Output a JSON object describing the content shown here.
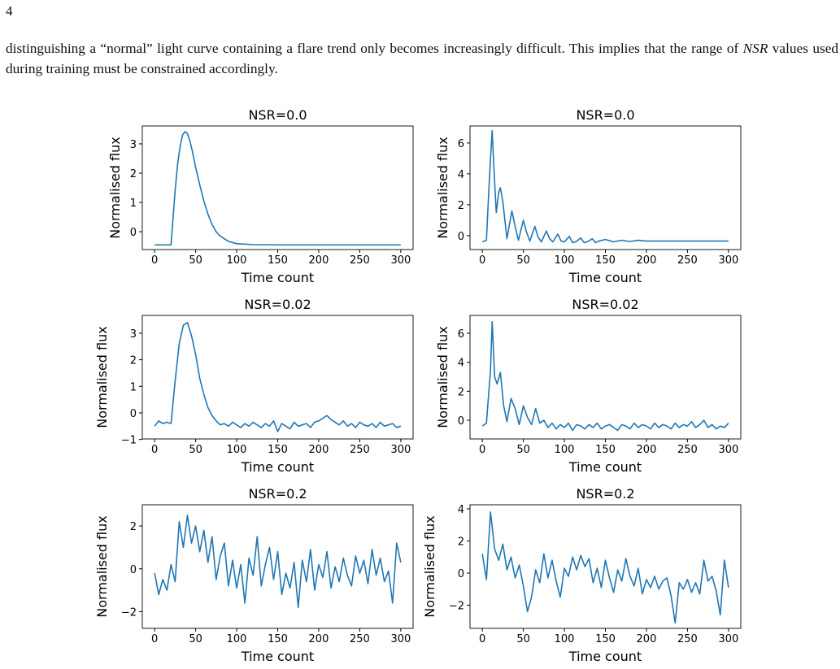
{
  "page_number": "4",
  "paragraph": [
    "distinguishing a “normal” light curve containing a flare trend only becomes increasingly difficult. This implies that the range of ",
    "NSR",
    " values used during training must be constrained accordingly."
  ],
  "chart_data": [
    {
      "type": "line",
      "title": "NSR=0.0",
      "xlabel": "Time count",
      "ylabel": "Normalised flux",
      "color": "#1f77b4",
      "x": [
        0,
        10,
        20,
        22,
        25,
        28,
        31,
        34,
        37,
        40,
        43,
        46,
        50,
        55,
        60,
        65,
        70,
        75,
        80,
        90,
        100,
        120,
        150,
        200,
        250,
        300
      ],
      "values": [
        -0.45,
        -0.45,
        -0.45,
        0.3,
        1.4,
        2.3,
        2.9,
        3.3,
        3.42,
        3.35,
        3.1,
        2.75,
        2.2,
        1.6,
        1.05,
        0.6,
        0.25,
        0.0,
        -0.15,
        -0.33,
        -0.41,
        -0.44,
        -0.45,
        -0.45,
        -0.45,
        -0.45
      ],
      "xlim": [
        -15,
        315
      ],
      "xticks": [
        0,
        50,
        100,
        150,
        200,
        250,
        300
      ],
      "ylim": [
        -0.61,
        3.61
      ],
      "yticks": [
        0,
        1,
        2,
        3
      ]
    },
    {
      "type": "line",
      "title": "NSR=0.0",
      "xlabel": "Time count",
      "ylabel": "Normalised flux",
      "color": "#1f77b4",
      "x": [
        0,
        5,
        8,
        10,
        12,
        14,
        17,
        20,
        22,
        25,
        30,
        36,
        40,
        44,
        50,
        54,
        58,
        64,
        68,
        72,
        78,
        82,
        86,
        92,
        96,
        100,
        106,
        110,
        114,
        120,
        124,
        128,
        134,
        138,
        142,
        150,
        160,
        170,
        180,
        190,
        200,
        250,
        300
      ],
      "values": [
        -0.4,
        -0.3,
        3.0,
        5.0,
        6.8,
        4.5,
        1.5,
        2.8,
        3.1,
        2.2,
        -0.2,
        1.6,
        0.6,
        -0.3,
        1.0,
        0.2,
        -0.35,
        0.6,
        -0.1,
        -0.4,
        0.3,
        -0.2,
        -0.4,
        0.1,
        -0.35,
        -0.4,
        -0.05,
        -0.45,
        -0.4,
        -0.15,
        -0.45,
        -0.4,
        -0.2,
        -0.45,
        -0.35,
        -0.25,
        -0.4,
        -0.3,
        -0.38,
        -0.3,
        -0.35,
        -0.35,
        -0.35
      ],
      "xlim": [
        -15,
        315
      ],
      "xticks": [
        0,
        50,
        100,
        150,
        200,
        250,
        300
      ],
      "ylim": [
        -0.9,
        7.1
      ],
      "yticks": [
        0,
        2,
        4,
        6
      ]
    },
    {
      "type": "line",
      "title": "NSR=0.02",
      "xlabel": "Time count",
      "ylabel": "Normalised flux",
      "color": "#1f77b4",
      "x": [
        0,
        5,
        10,
        15,
        20,
        25,
        30,
        35,
        40,
        45,
        50,
        55,
        60,
        65,
        70,
        75,
        80,
        85,
        90,
        95,
        100,
        105,
        110,
        115,
        120,
        125,
        130,
        135,
        140,
        145,
        150,
        155,
        160,
        165,
        170,
        175,
        180,
        185,
        190,
        195,
        200,
        205,
        210,
        215,
        220,
        225,
        230,
        235,
        240,
        245,
        250,
        255,
        260,
        265,
        270,
        275,
        280,
        285,
        290,
        295,
        300
      ],
      "values": [
        -0.5,
        -0.3,
        -0.4,
        -0.35,
        -0.4,
        1.2,
        2.6,
        3.3,
        3.4,
        2.9,
        2.2,
        1.3,
        0.7,
        0.2,
        -0.1,
        -0.3,
        -0.45,
        -0.4,
        -0.5,
        -0.35,
        -0.45,
        -0.55,
        -0.4,
        -0.5,
        -0.35,
        -0.45,
        -0.55,
        -0.4,
        -0.5,
        -0.3,
        -0.7,
        -0.4,
        -0.5,
        -0.6,
        -0.35,
        -0.5,
        -0.45,
        -0.4,
        -0.55,
        -0.35,
        -0.3,
        -0.2,
        -0.1,
        -0.25,
        -0.35,
        -0.45,
        -0.3,
        -0.5,
        -0.4,
        -0.55,
        -0.35,
        -0.45,
        -0.5,
        -0.4,
        -0.55,
        -0.35,
        -0.5,
        -0.45,
        -0.4,
        -0.55,
        -0.5
      ],
      "xlim": [
        -15,
        315
      ],
      "xticks": [
        0,
        50,
        100,
        150,
        200,
        250,
        300
      ],
      "ylim": [
        -0.98,
        3.67
      ],
      "yticks": [
        {
          "value": -1,
          "label": "−1"
        },
        0,
        1,
        2,
        3
      ]
    },
    {
      "type": "line",
      "title": "NSR=0.02",
      "xlabel": "Time count",
      "ylabel": "Normalised flux",
      "color": "#1f77b4",
      "x": [
        0,
        5,
        10,
        12,
        15,
        18,
        22,
        26,
        30,
        35,
        40,
        45,
        50,
        55,
        60,
        65,
        70,
        75,
        80,
        85,
        90,
        95,
        100,
        105,
        110,
        115,
        120,
        125,
        130,
        135,
        140,
        145,
        150,
        155,
        160,
        165,
        170,
        175,
        180,
        185,
        190,
        195,
        200,
        205,
        210,
        215,
        220,
        225,
        230,
        235,
        240,
        245,
        250,
        255,
        260,
        265,
        270,
        275,
        280,
        285,
        290,
        295,
        300
      ],
      "values": [
        -0.4,
        -0.2,
        3.5,
        6.8,
        3.0,
        2.5,
        3.3,
        1.0,
        -0.1,
        1.5,
        0.8,
        -0.3,
        1.0,
        0.2,
        -0.3,
        0.8,
        -0.2,
        0.0,
        -0.5,
        -0.2,
        -0.6,
        -0.3,
        -0.5,
        -0.2,
        -0.7,
        -0.3,
        -0.4,
        -0.6,
        -0.3,
        -0.5,
        -0.2,
        -0.6,
        -0.4,
        -0.3,
        -0.5,
        -0.7,
        -0.3,
        -0.4,
        -0.6,
        -0.2,
        -0.5,
        -0.3,
        -0.4,
        -0.6,
        -0.2,
        -0.5,
        -0.3,
        -0.4,
        -0.6,
        -0.2,
        -0.5,
        -0.3,
        -0.4,
        -0.1,
        -0.5,
        -0.3,
        0.0,
        -0.5,
        -0.3,
        -0.6,
        -0.4,
        -0.5,
        -0.2
      ],
      "xlim": [
        -15,
        315
      ],
      "xticks": [
        0,
        50,
        100,
        150,
        200,
        250,
        300
      ],
      "ylim": [
        -1.29,
        7.23
      ],
      "yticks": [
        0,
        2,
        4,
        6
      ]
    },
    {
      "type": "line",
      "title": "NSR=0.2",
      "xlabel": "Time count",
      "ylabel": "Normalised flux",
      "color": "#1f77b4",
      "x": [
        0,
        5,
        10,
        15,
        20,
        25,
        30,
        35,
        40,
        45,
        50,
        55,
        60,
        65,
        70,
        75,
        80,
        85,
        90,
        95,
        100,
        105,
        110,
        115,
        120,
        125,
        130,
        135,
        140,
        145,
        150,
        155,
        160,
        165,
        170,
        175,
        180,
        185,
        190,
        195,
        200,
        205,
        210,
        215,
        220,
        225,
        230,
        235,
        240,
        245,
        250,
        255,
        260,
        265,
        270,
        275,
        280,
        285,
        290,
        295,
        300
      ],
      "values": [
        -0.2,
        -1.2,
        -0.5,
        -1.0,
        0.2,
        -0.6,
        2.2,
        1.0,
        2.5,
        1.2,
        2.0,
        0.8,
        1.8,
        0.3,
        1.5,
        -0.5,
        0.6,
        1.2,
        -0.8,
        0.4,
        -0.9,
        0.2,
        -1.6,
        0.5,
        -0.3,
        1.5,
        -0.8,
        0.2,
        1.0,
        -0.5,
        0.8,
        -1.2,
        -0.2,
        -0.9,
        0.3,
        -1.8,
        0.4,
        -0.6,
        0.9,
        -1.0,
        0.2,
        -0.4,
        0.8,
        -0.9,
        0.1,
        -0.6,
        0.5,
        -0.3,
        -0.8,
        0.6,
        -0.2,
        0.4,
        -0.7,
        0.9,
        -0.3,
        0.5,
        -0.6,
        -0.1,
        -1.6,
        1.2,
        0.3
      ],
      "xlim": [
        -15,
        315
      ],
      "xticks": [
        0,
        50,
        100,
        150,
        200,
        250,
        300
      ],
      "ylim": [
        -2.78,
        2.99
      ],
      "yticks": [
        {
          "value": -2,
          "label": "−2"
        },
        0,
        2
      ]
    },
    {
      "type": "line",
      "title": "NSR=0.2",
      "xlabel": "Time count",
      "ylabel": "Normalised flux",
      "color": "#1f77b4",
      "x": [
        0,
        5,
        10,
        15,
        20,
        25,
        30,
        35,
        40,
        45,
        50,
        55,
        60,
        65,
        70,
        75,
        80,
        85,
        90,
        95,
        100,
        105,
        110,
        115,
        120,
        125,
        130,
        135,
        140,
        145,
        150,
        155,
        160,
        165,
        170,
        175,
        180,
        185,
        190,
        195,
        200,
        205,
        210,
        215,
        220,
        225,
        230,
        235,
        240,
        245,
        250,
        255,
        260,
        265,
        270,
        275,
        280,
        285,
        290,
        295,
        300
      ],
      "values": [
        1.2,
        -0.4,
        3.8,
        1.5,
        0.8,
        1.8,
        0.2,
        1.0,
        -0.3,
        0.5,
        -0.8,
        -2.4,
        -1.5,
        0.2,
        -0.6,
        1.2,
        -0.3,
        0.8,
        -0.5,
        -1.5,
        0.3,
        -0.2,
        1.0,
        0.2,
        1.1,
        0.4,
        0.9,
        -0.6,
        0.3,
        -0.9,
        0.8,
        -0.3,
        -1.2,
        0.2,
        -0.5,
        0.9,
        -0.2,
        -0.8,
        0.3,
        -1.3,
        -0.4,
        -0.9,
        -0.2,
        -1.0,
        -0.5,
        -0.3,
        -1.4,
        -3.1,
        -0.6,
        -1.0,
        -0.4,
        -1.2,
        -0.6,
        -1.3,
        0.8,
        -0.5,
        -0.2,
        -1.1,
        -2.6,
        0.8,
        -0.9
      ],
      "xlim": [
        -15,
        315
      ],
      "xticks": [
        0,
        50,
        100,
        150,
        200,
        250,
        300
      ],
      "ylim": [
        -3.44,
        4.25
      ],
      "yticks": [
        {
          "value": -2,
          "label": "−2"
        },
        0,
        2,
        4
      ]
    }
  ]
}
